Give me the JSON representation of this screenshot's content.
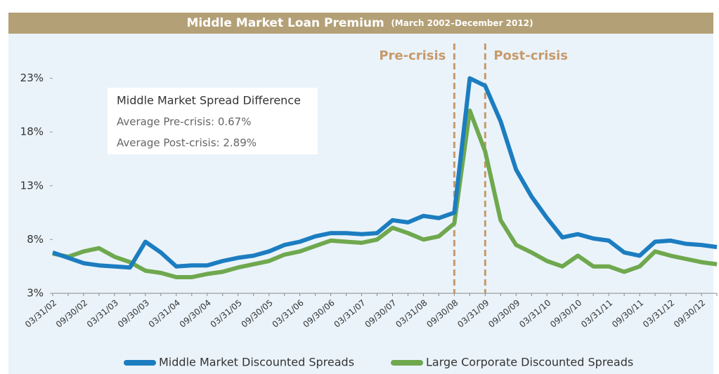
{
  "chart_data": {
    "type": "line",
    "title": "Middle Market Loan Premium",
    "subtitle": "(March 2002–December 2012)",
    "categories": [
      "03/31/02",
      null,
      "09/30/02",
      null,
      "03/31/03",
      null,
      "09/30/03",
      null,
      "03/31/04",
      null,
      "09/30/04",
      null,
      "03/31/05",
      null,
      "09/30/05",
      null,
      "03/31/06",
      null,
      "09/30/06",
      null,
      "03/31/07",
      null,
      "09/30/07",
      null,
      "03/31/08",
      null,
      "09/30/08",
      null,
      "03/31/09",
      null,
      "09/30/09",
      null,
      "03/31/10",
      null,
      "09/30/10",
      null,
      "03/31/11",
      null,
      "09/30/11",
      null,
      "03/31/12",
      null,
      "09/30/12",
      null
    ],
    "series": [
      {
        "name": "Middle Market Discounted Spreads",
        "color": "#1c7dc0",
        "values": [
          6.8,
          6.3,
          5.8,
          5.6,
          5.5,
          5.4,
          7.8,
          6.8,
          5.5,
          5.6,
          5.6,
          6.0,
          6.3,
          6.5,
          6.9,
          7.5,
          7.8,
          8.3,
          8.6,
          8.6,
          8.5,
          8.6,
          9.8,
          9.6,
          10.2,
          10.0,
          10.5,
          23.0,
          22.3,
          19.0,
          14.5,
          12.0,
          10.0,
          8.2,
          8.5,
          8.1,
          7.9,
          6.8,
          6.5,
          7.8,
          7.9,
          7.6,
          7.5,
          7.3
        ]
      },
      {
        "name": "Large Corporate Discounted Spreads",
        "color": "#6fa84e",
        "values": [
          6.7,
          6.4,
          6.9,
          7.2,
          6.4,
          5.9,
          5.1,
          4.9,
          4.5,
          4.5,
          4.8,
          5.0,
          5.4,
          5.7,
          6.0,
          6.6,
          6.9,
          7.4,
          7.9,
          7.8,
          7.7,
          8.0,
          9.1,
          8.6,
          8.0,
          8.3,
          9.5,
          20.0,
          16.2,
          9.8,
          7.5,
          6.8,
          6.0,
          5.5,
          6.5,
          5.5,
          5.5,
          5.0,
          5.5,
          6.9,
          6.5,
          6.2,
          5.9,
          5.7
        ]
      }
    ],
    "ylim": [
      3,
      26.5
    ],
    "yticks": [
      {
        "value": 3,
        "label": "3%"
      },
      {
        "value": 8,
        "label": "8%"
      },
      {
        "value": 13,
        "label": "13%"
      },
      {
        "value": 18,
        "label": "18%"
      },
      {
        "value": 23,
        "label": "23%"
      }
    ],
    "dividers": [
      {
        "label": "Pre-crisis",
        "at": "09/30/08"
      },
      {
        "label": "Post-crisis",
        "at": "03/31/09"
      }
    ],
    "annotation": {
      "title": "Middle Market Spread Difference",
      "lines": [
        "Average Pre-crisis: 0.67%",
        "Average Post-crisis: 2.89%"
      ]
    }
  }
}
